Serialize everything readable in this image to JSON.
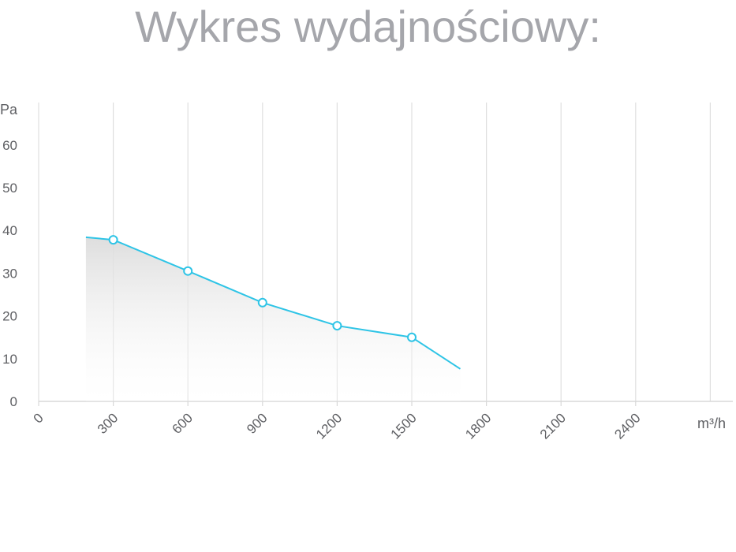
{
  "title": "Wykres wydajnościowy:",
  "chart_data": {
    "type": "area",
    "xlabel": "m³/h",
    "ylabel": "Pa",
    "xlim": [
      0,
      2700
    ],
    "ylim": [
      0,
      70
    ],
    "x_ticks": [
      "0",
      "300",
      "600",
      "900",
      "1200",
      "1500",
      "1800",
      "2100",
      "2400"
    ],
    "y_ticks": [
      "0",
      "10",
      "20",
      "30",
      "40",
      "50",
      "60"
    ],
    "grid": "vertical",
    "series": [
      {
        "color": "#2ec4e6",
        "points": [
          {
            "x": 190,
            "y": 38.4,
            "marker": false
          },
          {
            "x": 300,
            "y": 37.8,
            "marker": true
          },
          {
            "x": 600,
            "y": 30.5,
            "marker": true
          },
          {
            "x": 900,
            "y": 23.1,
            "marker": true
          },
          {
            "x": 1200,
            "y": 17.7,
            "marker": true
          },
          {
            "x": 1500,
            "y": 15.0,
            "marker": true
          },
          {
            "x": 1695,
            "y": 7.6,
            "marker": false
          }
        ]
      }
    ]
  }
}
